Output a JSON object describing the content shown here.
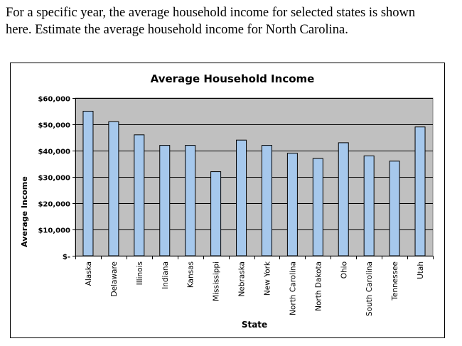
{
  "question": {
    "line1": "For a specific year, the average household income for selected states is shown",
    "line2": "here.  Estimate the average household income for North Carolina."
  },
  "chart_data": {
    "type": "bar",
    "title": "Average Household Income",
    "xlabel": "State",
    "ylabel": "Average Income",
    "categories": [
      "Alaska",
      "Delaware",
      "Illinois",
      "Indiana",
      "Kansas",
      "Mississippi",
      "Nebraska",
      "New York",
      "North Carolina",
      "North Dakota",
      "Ohio",
      "South Carolina",
      "Tennessee",
      "Utah"
    ],
    "values": [
      55000,
      51000,
      46000,
      42000,
      42000,
      32000,
      44000,
      42000,
      39000,
      37000,
      43000,
      38000,
      36000,
      49000
    ],
    "ylim": [
      0,
      60000
    ],
    "yticks": [
      0,
      10000,
      20000,
      30000,
      40000,
      50000,
      60000
    ],
    "ytick_labels": [
      "$-",
      "$10,000",
      "$20,000",
      "$30,000",
      "$40,000",
      "$50,000",
      "$60,000"
    ],
    "grid": true,
    "legend": "none",
    "colors": {
      "bar_fill": "#a6c8ec",
      "bar_stroke": "#000000",
      "plot_bg": "#c0c0c0",
      "gridline": "#000000"
    }
  }
}
